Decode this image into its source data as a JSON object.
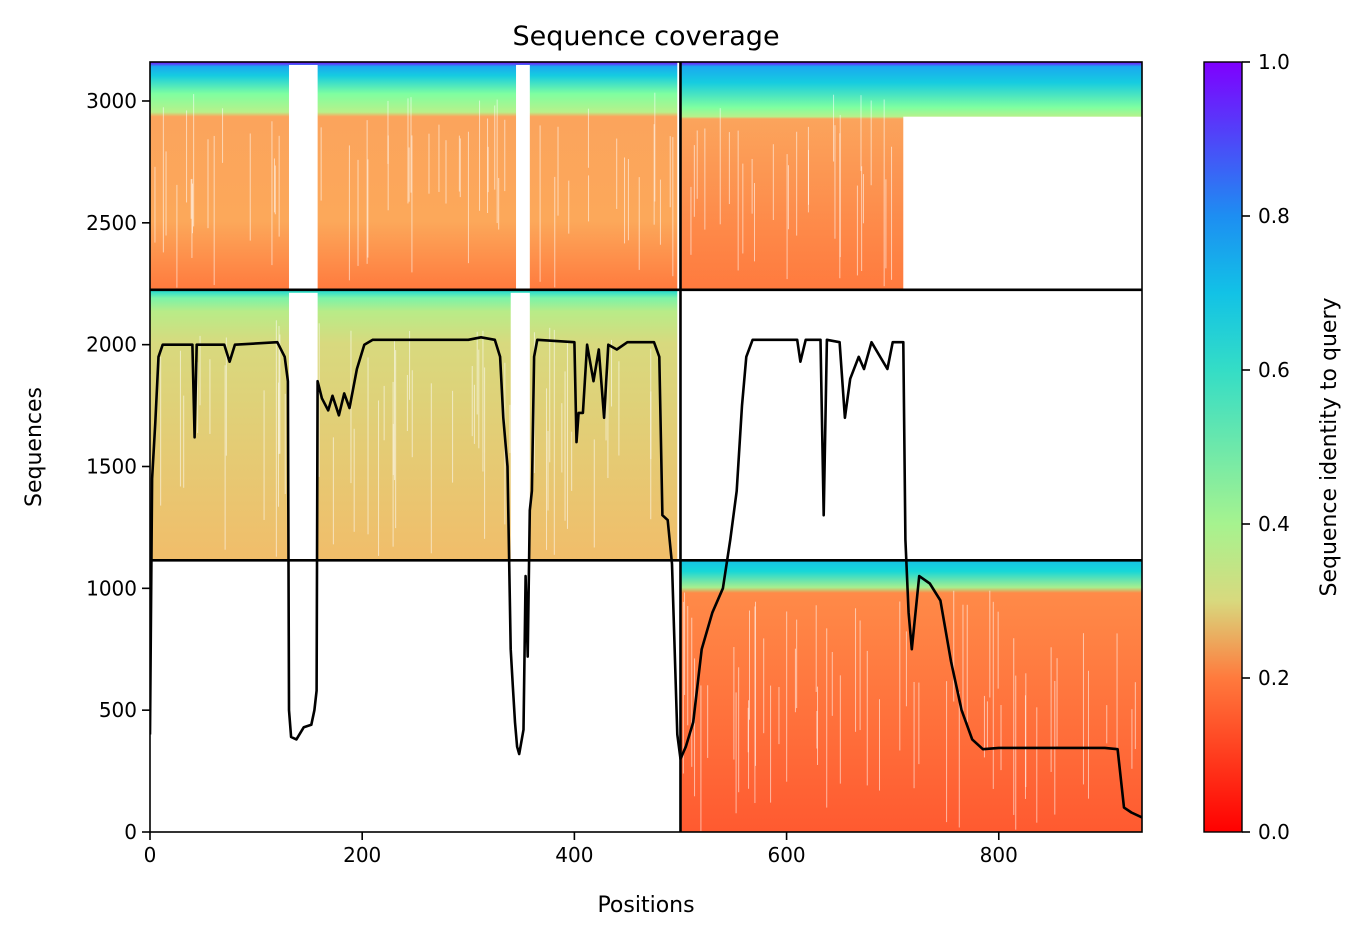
{
  "chart_data": {
    "type": "heatmap",
    "title": "Sequence coverage",
    "xlabel": "Positions",
    "ylabel": "Sequences",
    "xlim": [
      0,
      935
    ],
    "ylim": [
      0,
      3160
    ],
    "x_ticks": [
      0,
      200,
      400,
      600,
      800
    ],
    "y_ticks": [
      0,
      500,
      1000,
      1500,
      2000,
      2500,
      3000
    ],
    "colorbar": {
      "label": "Sequence identity to query",
      "range": [
        0,
        1
      ],
      "ticks": [
        "0.0",
        "0.2",
        "0.4",
        "0.6",
        "0.8",
        "1.0"
      ],
      "colormap": "rainbow_r"
    },
    "block_boundaries": {
      "x": 500,
      "y": [
        1115,
        2225
      ]
    },
    "blocks": [
      {
        "x": [
          0,
          497
        ],
        "y": [
          2225,
          3160
        ],
        "identity_top": 0.95,
        "identity_bottom": 0.18,
        "gaps": [
          [
            131,
            158
          ],
          [
            345,
            358
          ]
        ]
      },
      {
        "x": [
          500,
          935
        ],
        "y": [
          2225,
          3160
        ],
        "identity_top": 0.95,
        "identity_bottom": 0.18,
        "gaps": [
          [
            710,
            935
          ]
        ]
      },
      {
        "x": [
          0,
          497
        ],
        "y": [
          1115,
          2225
        ],
        "identity_top": 0.45,
        "identity_bottom": 0.28,
        "gaps": [
          [
            131,
            158
          ],
          [
            340,
            358
          ]
        ]
      },
      {
        "x": [
          500,
          935
        ],
        "y": [
          0,
          1115
        ],
        "identity_top": 0.85,
        "identity_bottom": 0.15,
        "gaps": []
      }
    ],
    "coverage": {
      "name": "Coverage",
      "color": "#000000",
      "points": [
        [
          0,
          400
        ],
        [
          2,
          1450
        ],
        [
          5,
          1680
        ],
        [
          8,
          1950
        ],
        [
          12,
          2000
        ],
        [
          40,
          2000
        ],
        [
          42,
          1620
        ],
        [
          44,
          2000
        ],
        [
          70,
          2000
        ],
        [
          75,
          1930
        ],
        [
          80,
          2000
        ],
        [
          120,
          2010
        ],
        [
          127,
          1950
        ],
        [
          130,
          1850
        ],
        [
          131,
          500
        ],
        [
          133,
          390
        ],
        [
          138,
          380
        ],
        [
          145,
          430
        ],
        [
          152,
          440
        ],
        [
          155,
          500
        ],
        [
          157,
          580
        ],
        [
          158,
          1850
        ],
        [
          162,
          1780
        ],
        [
          168,
          1730
        ],
        [
          172,
          1790
        ],
        [
          178,
          1710
        ],
        [
          183,
          1800
        ],
        [
          188,
          1740
        ],
        [
          195,
          1900
        ],
        [
          202,
          2000
        ],
        [
          210,
          2020
        ],
        [
          300,
          2020
        ],
        [
          312,
          2030
        ],
        [
          325,
          2020
        ],
        [
          330,
          1950
        ],
        [
          333,
          1700
        ],
        [
          337,
          1500
        ],
        [
          340,
          750
        ],
        [
          342,
          600
        ],
        [
          344,
          450
        ],
        [
          346,
          350
        ],
        [
          348,
          320
        ],
        [
          352,
          420
        ],
        [
          354,
          1050
        ],
        [
          356,
          720
        ],
        [
          358,
          1320
        ],
        [
          360,
          1400
        ],
        [
          362,
          1950
        ],
        [
          365,
          2020
        ],
        [
          400,
          2010
        ],
        [
          402,
          1600
        ],
        [
          404,
          1720
        ],
        [
          408,
          1720
        ],
        [
          412,
          2000
        ],
        [
          418,
          1850
        ],
        [
          423,
          1980
        ],
        [
          428,
          1700
        ],
        [
          432,
          2000
        ],
        [
          440,
          1980
        ],
        [
          450,
          2010
        ],
        [
          475,
          2010
        ],
        [
          480,
          1950
        ],
        [
          483,
          1300
        ],
        [
          488,
          1280
        ],
        [
          492,
          1100
        ],
        [
          497,
          400
        ],
        [
          500,
          300
        ],
        [
          505,
          350
        ],
        [
          512,
          450
        ],
        [
          520,
          750
        ],
        [
          530,
          900
        ],
        [
          540,
          1000
        ],
        [
          547,
          1200
        ],
        [
          553,
          1400
        ],
        [
          558,
          1750
        ],
        [
          562,
          1950
        ],
        [
          568,
          2020
        ],
        [
          610,
          2020
        ],
        [
          613,
          1930
        ],
        [
          618,
          2020
        ],
        [
          632,
          2020
        ],
        [
          635,
          1300
        ],
        [
          638,
          2020
        ],
        [
          650,
          2010
        ],
        [
          655,
          1700
        ],
        [
          660,
          1860
        ],
        [
          668,
          1950
        ],
        [
          673,
          1900
        ],
        [
          680,
          2010
        ],
        [
          695,
          1900
        ],
        [
          700,
          2010
        ],
        [
          710,
          2010
        ],
        [
          712,
          1200
        ],
        [
          715,
          900
        ],
        [
          718,
          750
        ],
        [
          725,
          1050
        ],
        [
          735,
          1020
        ],
        [
          745,
          950
        ],
        [
          755,
          700
        ],
        [
          765,
          500
        ],
        [
          775,
          380
        ],
        [
          785,
          340
        ],
        [
          800,
          345
        ],
        [
          900,
          345
        ],
        [
          912,
          340
        ],
        [
          918,
          100
        ],
        [
          925,
          80
        ],
        [
          935,
          60
        ]
      ]
    }
  }
}
